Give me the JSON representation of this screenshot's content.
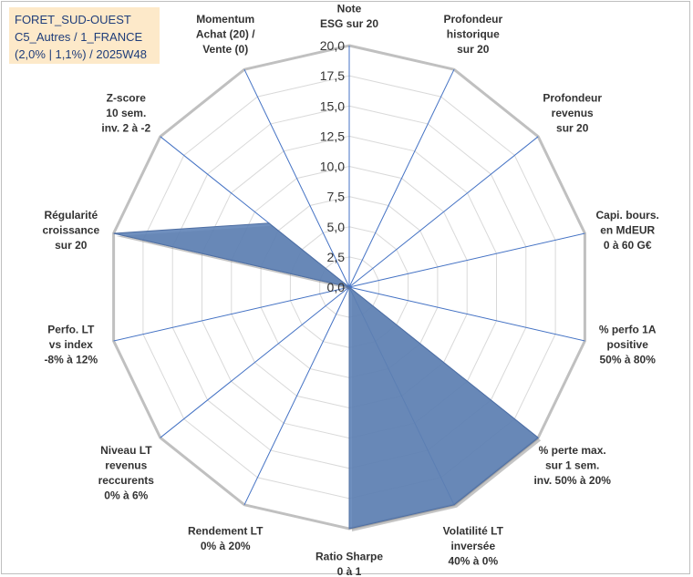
{
  "title": {
    "line1": "FORET_SUD-OUEST",
    "line2": "C5_Autres / 1_FRANCE",
    "line3": "(2,0% | 1,1%) / 2025W48"
  },
  "chart_data": {
    "type": "radar",
    "rmin": 0,
    "rmax": 20,
    "tick_labels": [
      "0,0",
      "2,5",
      "5,0",
      "7,5",
      "10,0",
      "12,5",
      "15,0",
      "17,5",
      "20,0"
    ],
    "axes": [
      {
        "label": [
          "Note",
          "ESG sur 20"
        ],
        "value": 0
      },
      {
        "label": [
          "Profondeur",
          "historique",
          "sur 20"
        ],
        "value": 0
      },
      {
        "label": [
          "Profondeur",
          "revenus",
          "sur 20"
        ],
        "value": 0
      },
      {
        "label": [
          "Capi. bours.",
          "en MdEUR",
          "0 à 60 G€"
        ],
        "value": 0
      },
      {
        "label": [
          "% perfo 1A",
          "positive",
          "50% à 80%"
        ],
        "value": 0
      },
      {
        "label": [
          "% perte max.",
          "sur 1 sem.",
          "inv. 50% à 20%"
        ],
        "value": 20
      },
      {
        "label": [
          "Volatilité LT",
          "inversée",
          "40% à 0%"
        ],
        "value": 20
      },
      {
        "label": [
          "Ratio Sharpe",
          "0 à 1"
        ],
        "value": 20
      },
      {
        "label": [
          "Rendement LT",
          "0% à 20%"
        ],
        "value": 0
      },
      {
        "label": [
          "Niveau LT",
          "revenus",
          "reccurents",
          "0% à 6%"
        ],
        "value": 0
      },
      {
        "label": [
          "Perfo. LT",
          "vs index",
          "-8% à 12%"
        ],
        "value": 0
      },
      {
        "label": [
          "Régularité",
          "croissance",
          "sur 20"
        ],
        "value": 20
      },
      {
        "label": [
          "Z-score",
          "10 sem.",
          "inv. 2 à -2"
        ],
        "value": 8.5
      },
      {
        "label": [
          "Momentum",
          "Achat (20) /",
          "Vente (0)"
        ],
        "value": 0
      }
    ],
    "series": [
      {
        "values": [
          0,
          0,
          0,
          0,
          0,
          20,
          20,
          20,
          0,
          0,
          0,
          20,
          8.5,
          0
        ]
      }
    ],
    "colors": {
      "fill": "#5b7fb5",
      "edge": "#4f6fa3",
      "grid": "#d9d9d9",
      "outer": "#c0c0c0",
      "spoke": "#4472c4"
    }
  }
}
